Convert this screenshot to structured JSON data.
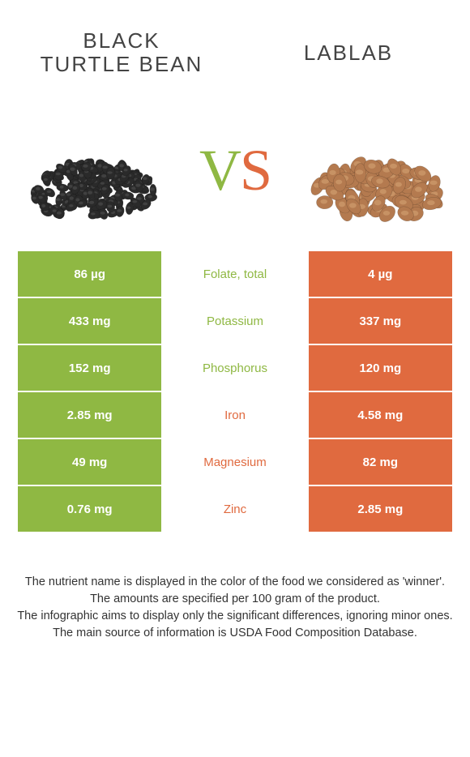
{
  "food_left": {
    "title": "BLACK\nTURTLE BEAN",
    "bean_color": "#2a2a2a",
    "bean_highlight": "#555"
  },
  "food_right": {
    "title": "LABLAB",
    "bean_color": "#b47a4f",
    "bean_highlight": "#d9a97a"
  },
  "vs_left_color": "#8fb843",
  "vs_right_color": "#e06a3f",
  "table": {
    "left_bg": "#8fb843",
    "right_bg": "#e06a3f",
    "left_text": "#ffffff",
    "right_text": "#ffffff",
    "rows": [
      {
        "left": "86 µg",
        "label": "Folate, total",
        "right": "4 µg",
        "winner": "left"
      },
      {
        "left": "433 mg",
        "label": "Potassium",
        "right": "337 mg",
        "winner": "left"
      },
      {
        "left": "152 mg",
        "label": "Phosphorus",
        "right": "120 mg",
        "winner": "left"
      },
      {
        "left": "2.85 mg",
        "label": "Iron",
        "right": "4.58 mg",
        "winner": "right"
      },
      {
        "left": "49 mg",
        "label": "Magnesium",
        "right": "82 mg",
        "winner": "right"
      },
      {
        "left": "0.76 mg",
        "label": "Zinc",
        "right": "2.85 mg",
        "winner": "right"
      }
    ]
  },
  "footer_lines": [
    "The nutrient name is displayed in the color of the food we considered as 'winner'.",
    "The amounts are specified per 100 gram of the product.",
    "The infographic aims to display only the significant differences, ignoring minor ones.",
    "The main source of information is USDA Food Composition Database."
  ]
}
